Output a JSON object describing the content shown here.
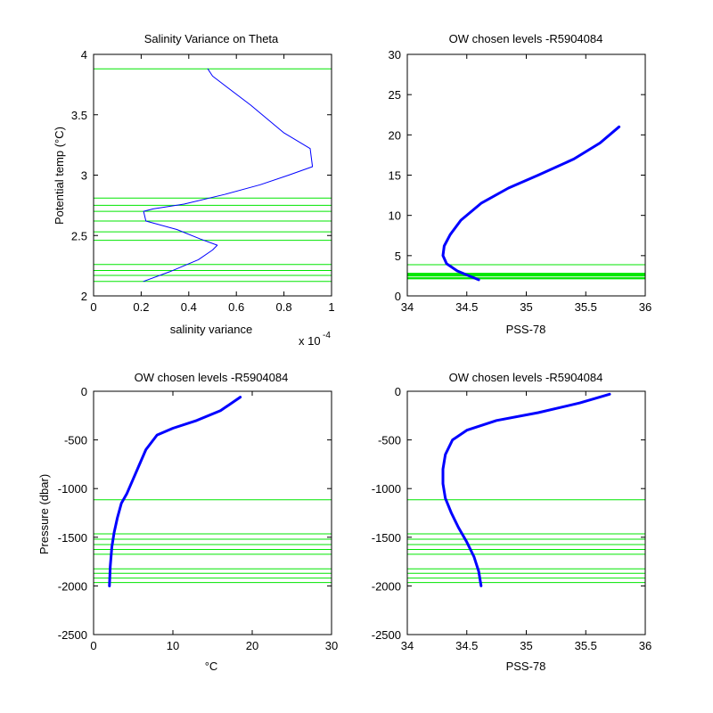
{
  "colors": {
    "profile": "#0000ff",
    "levels": "#00e600",
    "axes": "#000000",
    "background": "#ffffff"
  },
  "chart_data": [
    {
      "type": "line",
      "title": "Salinity Variance on Theta",
      "xlabel": "salinity variance",
      "ylabel": "Potential temp (°C)",
      "xlim": [
        0,
        1
      ],
      "ylim": [
        2,
        4
      ],
      "x_ticks": [
        "0",
        "0.2",
        "0.4",
        "0.6",
        "0.8",
        "1"
      ],
      "y_ticks": [
        "2",
        "2.5",
        "3",
        "3.5",
        "4"
      ],
      "x_exponent_base": "x 10",
      "x_exponent_power": "-4",
      "grid": false,
      "series": [
        {
          "x": [
            0.21,
            0.32,
            0.44,
            0.5,
            0.52,
            0.45,
            0.35,
            0.22,
            0.21,
            0.25,
            0.38,
            0.55,
            0.7,
            0.82,
            0.92,
            0.91,
            0.8,
            0.66,
            0.5,
            0.48
          ],
          "y": [
            2.12,
            2.2,
            2.3,
            2.38,
            2.42,
            2.47,
            2.55,
            2.62,
            2.7,
            2.72,
            2.76,
            2.84,
            2.92,
            3.0,
            3.07,
            3.22,
            3.35,
            3.58,
            3.82,
            3.88
          ]
        }
      ],
      "levels": [
        2.12,
        2.17,
        2.21,
        2.26,
        2.46,
        2.53,
        2.62,
        2.7,
        2.75,
        2.81,
        3.88
      ]
    },
    {
      "type": "line",
      "title": "OW chosen levels -R5904084",
      "xlabel": "PSS-78",
      "ylabel": "",
      "xlim": [
        34,
        36
      ],
      "ylim": [
        0,
        30
      ],
      "x_ticks": [
        "34",
        "34.5",
        "35",
        "35.5",
        "36"
      ],
      "y_ticks": [
        "0",
        "5",
        "10",
        "15",
        "20",
        "25",
        "30"
      ],
      "grid": false,
      "series": [
        {
          "x": [
            34.6,
            34.5,
            34.42,
            34.33,
            34.3,
            34.31,
            34.36,
            34.45,
            34.62,
            34.85,
            35.1,
            35.4,
            35.62,
            35.78
          ],
          "y": [
            2.0,
            2.6,
            3.1,
            4.0,
            5.0,
            6.2,
            7.6,
            9.4,
            11.5,
            13.4,
            15.0,
            17.0,
            19.0,
            21.0
          ]
        }
      ],
      "levels": [
        2.12,
        2.17,
        2.21,
        2.26,
        2.46,
        2.53,
        2.62,
        2.7,
        2.75,
        2.81,
        3.88
      ]
    },
    {
      "type": "line",
      "title": "OW chosen levels -R5904084",
      "xlabel": "°C",
      "ylabel": "Pressure (dbar)",
      "xlim": [
        0,
        30
      ],
      "ylim": [
        -2500,
        0
      ],
      "x_ticks": [
        "0",
        "10",
        "20",
        "30"
      ],
      "y_ticks": [
        "-2500",
        "-2000",
        "-1500",
        "-1000",
        "-500",
        "0"
      ],
      "grid": false,
      "series": [
        {
          "x": [
            2.0,
            2.1,
            2.3,
            2.6,
            3.0,
            3.5,
            4.2,
            5.0,
            5.8,
            6.6,
            8.0,
            10.0,
            13.0,
            16.0,
            18.5
          ],
          "y": [
            -2000,
            -1800,
            -1600,
            -1450,
            -1300,
            -1150,
            -1050,
            -900,
            -750,
            -600,
            -450,
            -380,
            -300,
            -200,
            -60
          ]
        }
      ],
      "levels": [
        -1115,
        -1465,
        -1520,
        -1575,
        -1625,
        -1675,
        -1825,
        -1870,
        -1920,
        -1965
      ]
    },
    {
      "type": "line",
      "title": "OW chosen levels -R5904084",
      "xlabel": "PSS-78",
      "ylabel": "",
      "xlim": [
        34,
        36
      ],
      "ylim": [
        -2500,
        0
      ],
      "x_ticks": [
        "34",
        "34.5",
        "35",
        "35.5",
        "36"
      ],
      "y_ticks": [
        "-2500",
        "-2000",
        "-1500",
        "-1000",
        "-500",
        "0"
      ],
      "grid": false,
      "series": [
        {
          "x": [
            34.62,
            34.6,
            34.56,
            34.5,
            34.43,
            34.37,
            34.32,
            34.3,
            34.3,
            34.32,
            34.38,
            34.5,
            34.75,
            35.1,
            35.45,
            35.7
          ],
          "y": [
            -2000,
            -1850,
            -1700,
            -1550,
            -1400,
            -1250,
            -1100,
            -950,
            -800,
            -650,
            -500,
            -400,
            -300,
            -220,
            -120,
            -30
          ]
        }
      ],
      "levels": [
        -1115,
        -1465,
        -1520,
        -1575,
        -1625,
        -1675,
        -1825,
        -1870,
        -1920,
        -1965
      ]
    }
  ]
}
